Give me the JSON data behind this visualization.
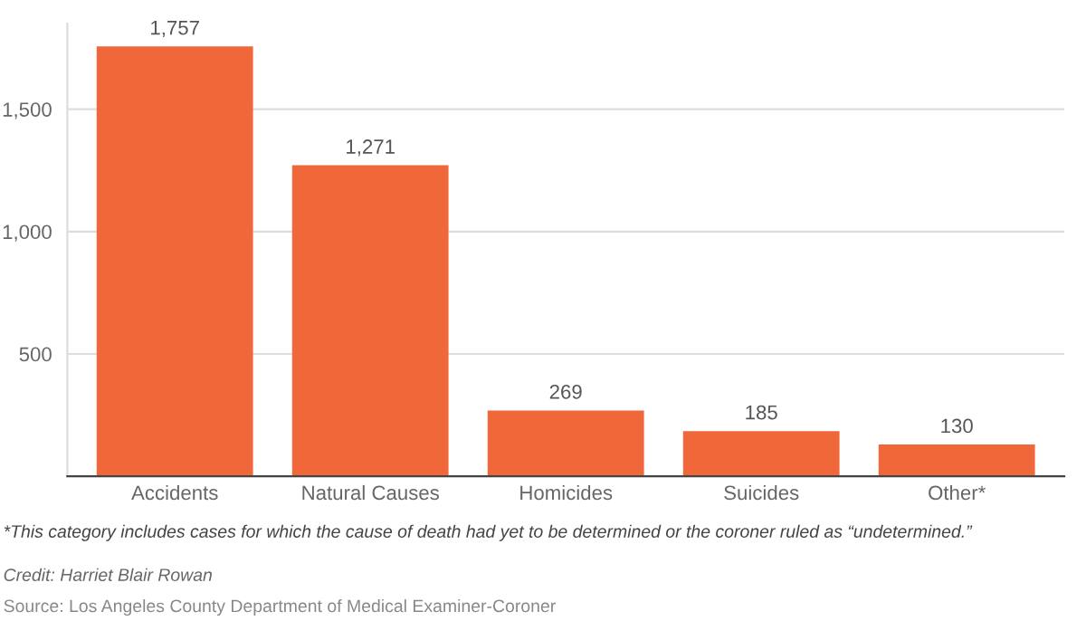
{
  "chart_data": {
    "type": "bar",
    "categories": [
      "Accidents",
      "Natural Causes",
      "Homicides",
      "Suicides",
      "Other*"
    ],
    "values": [
      1757,
      1271,
      269,
      185,
      130
    ],
    "color": "#f0673a",
    "ylim": [
      0,
      1850
    ],
    "yticks": [
      500,
      {
        "value": 1000,
        "label": "1,000"
      },
      {
        "value": 1500,
        "label": "1,500"
      }
    ],
    "grid": "y",
    "value_labels": [
      "1,757",
      "1,271",
      "269",
      "185",
      "130"
    ],
    "annotations": [
      "*This category includes cases for which the cause of death had yet to be determined or the coroner ruled as “undetermined.”",
      "Credit: Harriet Blair Rowan",
      "Source: Los Angeles County Department of Medical Examiner-Coroner"
    ]
  }
}
